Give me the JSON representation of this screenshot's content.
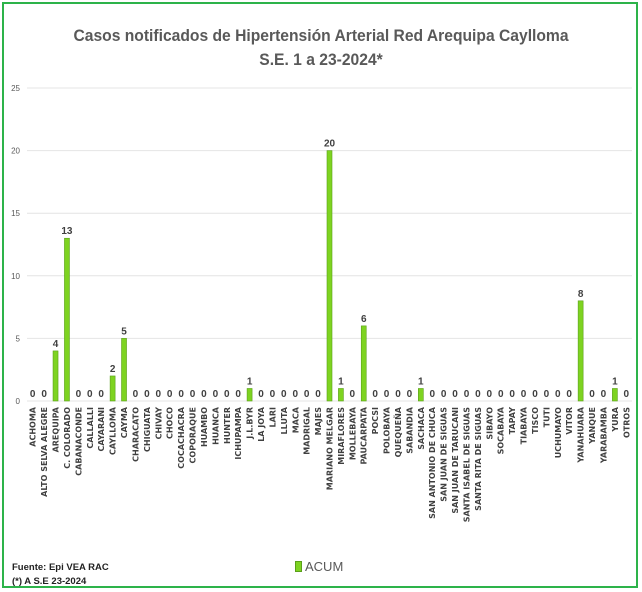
{
  "chart_data": {
    "type": "bar",
    "title": "Casos notificados de Hipertensión Arterial Red Arequipa  Caylloma",
    "subtitle": "S.E. 1 a 23-2024*",
    "xlabel": "",
    "ylabel": "",
    "ylim": [
      0,
      25
    ],
    "yticks": [
      "0",
      "5",
      "10",
      "15",
      "20",
      "25"
    ],
    "grid": true,
    "legend_position": "bottom",
    "categories": [
      "ACHOMA",
      "ALTO SELVA ALEGRE",
      "AREQUIPA",
      "C. COLORADO",
      "CABANACONDE",
      "CALLALLI",
      "CAYARANI",
      "CAYLLOMA",
      "CAYMA",
      "CHARACATO",
      "CHIGUATA",
      "CHIVAY",
      "CHOCO",
      "COCACHACRA",
      "COPORAQUE",
      "HUAMBO",
      "HUANCA",
      "HUNTER",
      "ICHUPAMPA",
      "J.L.BYR",
      "LA JOYA",
      "LARI",
      "LLUTA",
      "MACA",
      "MADRIGAL",
      "MAJES",
      "MARIANO MELGAR",
      "MIRAFLORES",
      "MOLLEBAYA",
      "PAUCARPATA",
      "POCSI",
      "POLOBAYA",
      "QUEQUEÑA",
      "SABANDIA",
      "SACHACA",
      "SAN ANTONIO DE CHUCA",
      "SAN JUAN DE SIGUAS",
      "SAN JUAN DE TARUCANI",
      "SANTA ISABEL DE SIGUAS",
      "SANTA RITA DE SIGUAS",
      "SIBAYO",
      "SOCABAYA",
      "TAPAY",
      "TIABAYA",
      "TISCO",
      "TUTI",
      "UCHUMAYO",
      "VITOR",
      "YANAHUARA",
      "YANQUE",
      "YARABAMBA",
      "YURA",
      "OTROS"
    ],
    "series": [
      {
        "name": "ACUM",
        "color": "#7ed321",
        "values": [
          0,
          0,
          4,
          13,
          0,
          0,
          0,
          2,
          5,
          0,
          0,
          0,
          0,
          0,
          0,
          0,
          0,
          0,
          0,
          1,
          0,
          0,
          0,
          0,
          0,
          0,
          20,
          1,
          0,
          6,
          0,
          0,
          0,
          0,
          1,
          0,
          0,
          0,
          0,
          0,
          0,
          0,
          0,
          0,
          0,
          0,
          0,
          0,
          8,
          0,
          0,
          1,
          0
        ]
      }
    ]
  },
  "footer": {
    "source": "Fuente: Epi VEA RAC",
    "note": "(*) A S.E 23-2024"
  },
  "legend": {
    "label": "ACUM"
  }
}
